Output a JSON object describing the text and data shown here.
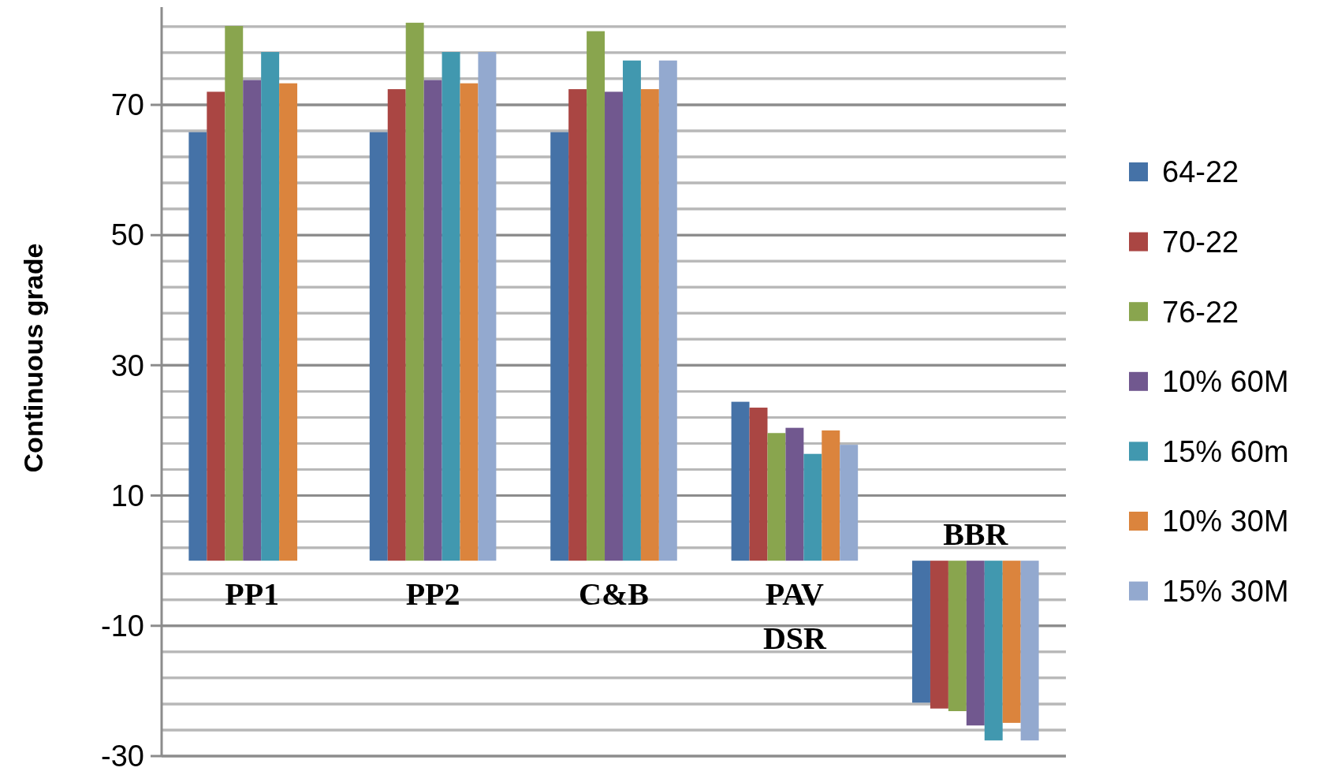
{
  "chart_data": {
    "type": "bar",
    "ylabel": "Continuous grade",
    "categories": [
      "PP1",
      "PP2",
      "C&B",
      "PAV DSR",
      "BBR"
    ],
    "series": [
      {
        "name": "64-22",
        "color": "#4572a7",
        "values": [
          65.8,
          65.8,
          65.8,
          24.4,
          -21.8
        ]
      },
      {
        "name": "70-22",
        "color": "#aa4643",
        "values": [
          72.0,
          72.4,
          72.4,
          23.5,
          -22.7
        ]
      },
      {
        "name": "76-22",
        "color": "#89a54e",
        "values": [
          82.1,
          82.6,
          81.3,
          19.6,
          -23.1
        ]
      },
      {
        "name": "10% 60M",
        "color": "#71588f",
        "values": [
          73.8,
          73.8,
          72.0,
          20.4,
          -25.3
        ]
      },
      {
        "name": "15% 60m",
        "color": "#4198af",
        "values": [
          78.1,
          78.1,
          76.8,
          16.4,
          -27.6
        ]
      },
      {
        "name": "10% 30M",
        "color": "#db843d",
        "values": [
          73.3,
          73.3,
          72.4,
          20.0,
          -24.9
        ]
      },
      {
        "name": "15% 30M",
        "color": "#93a9cf",
        "values": [
          null,
          78.1,
          76.8,
          17.8,
          -27.6
        ]
      }
    ],
    "ylim": [
      -30,
      85
    ],
    "yticks": [
      -30,
      {
        "value": -26,
        "label": null
      },
      {
        "value": -22,
        "label": null
      },
      {
        "value": -18,
        "label": null
      },
      {
        "value": -14,
        "label": null
      },
      -10,
      {
        "value": -6,
        "label": null
      },
      {
        "value": -2,
        "label": null
      },
      {
        "value": 2,
        "label": null
      },
      {
        "value": 6,
        "label": null
      },
      10,
      {
        "value": 14,
        "label": null
      },
      {
        "value": 18,
        "label": null
      },
      {
        "value": 22,
        "label": null
      },
      {
        "value": 26,
        "label": null
      },
      30,
      {
        "value": 34,
        "label": null
      },
      {
        "value": 38,
        "label": null
      },
      {
        "value": 42,
        "label": null
      },
      {
        "value": 46,
        "label": null
      },
      50,
      {
        "value": 54,
        "label": null
      },
      {
        "value": 58,
        "label": null
      },
      {
        "value": 62,
        "label": null
      },
      {
        "value": 66,
        "label": null
      },
      70,
      {
        "value": 74,
        "label": null
      },
      {
        "value": 78,
        "label": null
      },
      {
        "value": 82,
        "label": null
      }
    ],
    "grid": true,
    "legend": "right"
  }
}
